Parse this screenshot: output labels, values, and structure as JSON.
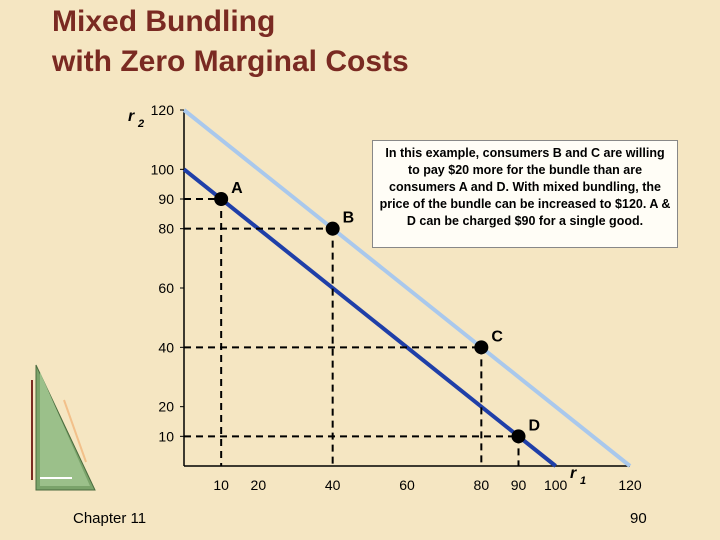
{
  "slide": {
    "title_line1": "Mixed Bundling",
    "title_line2": "with Zero Marginal Costs",
    "footer_left": "Chapter 11",
    "footer_right": "90",
    "note": "In this example, consumers B and C are willing to pay $20 more for the bundle than are consumers A and D. With mixed bundling, the price of the bundle can be increased to $120. A & D can be charged $90 for a single good."
  },
  "chart_data": {
    "type": "scatter",
    "xlabel": "r",
    "xlabel_sub": "1",
    "ylabel": "r",
    "ylabel_sub": "2",
    "xlim": [
      0,
      120
    ],
    "ylim": [
      0,
      120
    ],
    "x_ticks": [
      10,
      20,
      40,
      60,
      80,
      90,
      100,
      120
    ],
    "y_ticks": [
      10,
      20,
      40,
      60,
      80,
      90,
      100,
      120
    ],
    "points": [
      {
        "label": "A",
        "x": 10,
        "y": 90
      },
      {
        "label": "B",
        "x": 40,
        "y": 80
      },
      {
        "label": "C",
        "x": 80,
        "y": 40
      },
      {
        "label": "D",
        "x": 90,
        "y": 10
      }
    ],
    "lines": [
      {
        "from": [
          0,
          120
        ],
        "to": [
          120,
          0
        ],
        "color": "#a9c8ec"
      },
      {
        "from": [
          0,
          100
        ],
        "to": [
          100,
          0
        ],
        "color": "#1f3fa8"
      }
    ],
    "colors": {
      "points": "#000000",
      "dashed": "#000000"
    }
  }
}
